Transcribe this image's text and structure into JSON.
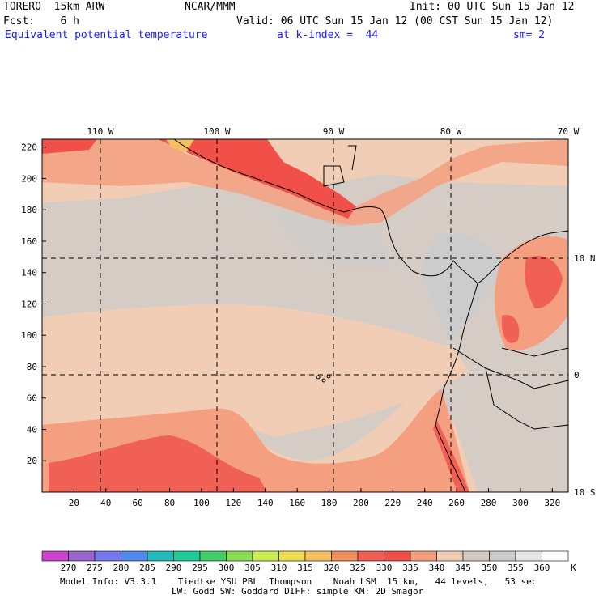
{
  "header": {
    "model": "TORERO  15km ARW",
    "org": "NCAR/MMM",
    "init": "Init: 00 UTC Sun 15 Jan 12",
    "fcst": "Fcst:    6 h",
    "valid": "Valid: 06 UTC Sun 15 Jan 12 (00 CST Sun 15 Jan 12)",
    "field": "Equivalent potential temperature",
    "kindex": "at k-index =  44",
    "smooth": "sm= 2"
  },
  "map": {
    "lon_labels": [
      "110 W",
      "100 W",
      "90 W",
      "80 W",
      "70 W"
    ],
    "lat_labels": [
      "10 N",
      "0",
      "10 S"
    ],
    "y_grid_ticks": [
      "20",
      "40",
      "60",
      "80",
      "100",
      "120",
      "140",
      "160",
      "180",
      "200",
      "220"
    ],
    "x_grid_ticks": [
      "20",
      "40",
      "60",
      "80",
      "100",
      "120",
      "140",
      "160",
      "180",
      "200",
      "220",
      "240",
      "260",
      "280",
      "300",
      "320"
    ]
  },
  "colorbar": {
    "labels": [
      "270",
      "275",
      "280",
      "285",
      "290",
      "295",
      "300",
      "305",
      "310",
      "315",
      "320",
      "325",
      "330",
      "335",
      "340",
      "345",
      "350",
      "355",
      "360"
    ],
    "unit": "K",
    "colors": [
      "#cc44cc",
      "#9966cc",
      "#7777ee",
      "#5588ee",
      "#22bbbb",
      "#22cc99",
      "#44cc66",
      "#88dd55",
      "#ccee55",
      "#eedd55",
      "#f4c060",
      "#f09060",
      "#f06055",
      "#f05048",
      "#f4a080",
      "#f2cdb5",
      "#d4cac4",
      "#cccccc",
      "#e8e8e8",
      "#ffffff"
    ]
  },
  "footer": {
    "line1": "Model Info: V3.3.1    Tiedtke YSU PBL  Thompson    Noah LSM  15 km,   44 levels,   53 sec",
    "line2": "LW: Godd SW: Goddard DIFF: simple KM: 2D Smagor"
  }
}
